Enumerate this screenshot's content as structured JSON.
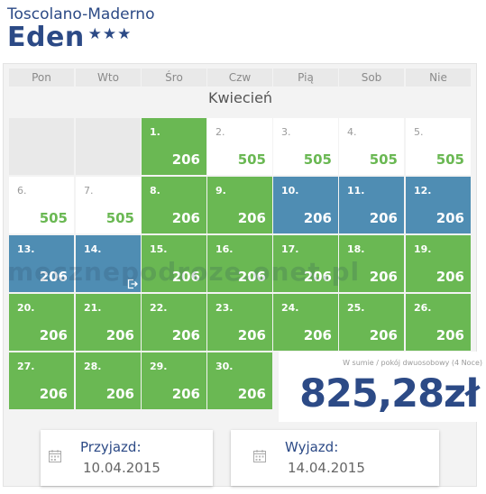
{
  "header": {
    "city": "Toscolano-Maderno",
    "hotel_name": "Eden",
    "stars": "★★★"
  },
  "calendar": {
    "weekdays": [
      "Pon",
      "Wto",
      "Śro",
      "Czw",
      "Pią",
      "Sob",
      "Nie"
    ],
    "month": "Kwiecień",
    "days": [
      {
        "day": "1.",
        "price": "206",
        "state": "green"
      },
      {
        "day": "2.",
        "price": "505",
        "state": "white"
      },
      {
        "day": "3.",
        "price": "505",
        "state": "white"
      },
      {
        "day": "4.",
        "price": "505",
        "state": "white"
      },
      {
        "day": "5.",
        "price": "505",
        "state": "white"
      },
      {
        "day": "6.",
        "price": "505",
        "state": "white"
      },
      {
        "day": "7.",
        "price": "505",
        "state": "white"
      },
      {
        "day": "8.",
        "price": "206",
        "state": "green"
      },
      {
        "day": "9.",
        "price": "206",
        "state": "green"
      },
      {
        "day": "10.",
        "price": "206",
        "state": "blue"
      },
      {
        "day": "11.",
        "price": "206",
        "state": "blue"
      },
      {
        "day": "12.",
        "price": "206",
        "state": "blue"
      },
      {
        "day": "13.",
        "price": "206",
        "state": "blue"
      },
      {
        "day": "14.",
        "price": "",
        "state": "blue"
      },
      {
        "day": "15.",
        "price": "206",
        "state": "green"
      },
      {
        "day": "16.",
        "price": "206",
        "state": "green"
      },
      {
        "day": "17.",
        "price": "206",
        "state": "green"
      },
      {
        "day": "18.",
        "price": "206",
        "state": "green"
      },
      {
        "day": "19.",
        "price": "206",
        "state": "green"
      },
      {
        "day": "20.",
        "price": "206",
        "state": "green"
      },
      {
        "day": "21.",
        "price": "206",
        "state": "green"
      },
      {
        "day": "22.",
        "price": "206",
        "state": "green"
      },
      {
        "day": "23.",
        "price": "206",
        "state": "green"
      },
      {
        "day": "24.",
        "price": "206",
        "state": "green"
      },
      {
        "day": "25.",
        "price": "206",
        "state": "green"
      },
      {
        "day": "26.",
        "price": "206",
        "state": "green"
      },
      {
        "day": "27.",
        "price": "206",
        "state": "green"
      },
      {
        "day": "28.",
        "price": "206",
        "state": "green"
      },
      {
        "day": "29.",
        "price": "206",
        "state": "green"
      },
      {
        "day": "30.",
        "price": "206",
        "state": "green"
      }
    ]
  },
  "summary": {
    "label": "W sumie / pokój dwuosobowy (4 Noce)",
    "price": "825,28zł"
  },
  "arrival": {
    "label": "Przyjazd:",
    "value": "10.04.2015"
  },
  "departure": {
    "label": "Wyjazd:",
    "value": "14.04.2015"
  },
  "watermark": "mecznepodroze.onet.pl",
  "colors": {
    "green": "#6ab853",
    "blue": "#4f8db3",
    "navy": "#2c4a86"
  }
}
